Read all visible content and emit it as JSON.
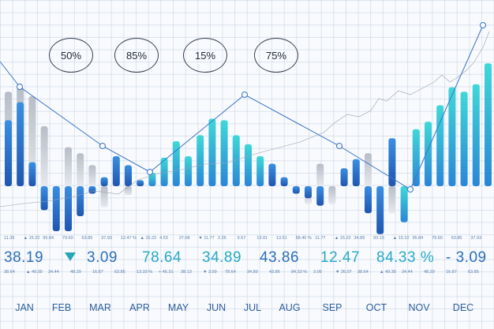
{
  "chart_data": {
    "type": "bar",
    "title": "",
    "months": [
      "JAN",
      "FEB",
      "MAR",
      "APR",
      "MAY",
      "JUN",
      "JUL",
      "AUG",
      "SEP",
      "OCT",
      "NOV",
      "DEC"
    ],
    "percent_badges": [
      "50%",
      "85%",
      "15%",
      "75%"
    ],
    "bars": [
      {
        "up": 44,
        "down": 0,
        "ghost_up": 63,
        "ghost_down": 0
      },
      {
        "up": 56,
        "down": 0,
        "ghost_up": 66,
        "ghost_down": 0
      },
      {
        "up": 16,
        "down": 0,
        "ghost_up": 60,
        "ghost_down": 0
      },
      {
        "up": 0,
        "down": 16,
        "ghost_up": 40,
        "ghost_down": 0
      },
      {
        "up": 0,
        "down": 30,
        "ghost_up": 0,
        "ghost_down": 0
      },
      {
        "up": 0,
        "down": 30,
        "ghost_up": 26,
        "ghost_down": 0
      },
      {
        "up": 0,
        "down": 20,
        "ghost_up": 22,
        "ghost_down": 0
      },
      {
        "up": 0,
        "down": 5,
        "ghost_up": 14,
        "ghost_down": 0
      },
      {
        "up": 6,
        "down": 0,
        "ghost_up": 0,
        "ghost_down": 14
      },
      {
        "up": 20,
        "down": 0,
        "ghost_up": 0,
        "ghost_down": 0
      },
      {
        "up": 14,
        "down": 0,
        "ghost_up": 0,
        "ghost_down": 6
      },
      {
        "up": 4,
        "down": 0,
        "ghost_up": 0,
        "ghost_down": 0
      },
      {
        "up": 9,
        "down": 0,
        "ghost_up": 0,
        "ghost_down": 0
      },
      {
        "up": 19,
        "down": 0,
        "ghost_up": 0,
        "ghost_down": 0
      },
      {
        "up": 30,
        "down": 0,
        "ghost_up": 0,
        "ghost_down": 0
      },
      {
        "up": 20,
        "down": 0,
        "ghost_up": 0,
        "ghost_down": 0
      },
      {
        "up": 34,
        "down": 0,
        "ghost_up": 0,
        "ghost_down": 0
      },
      {
        "up": 45,
        "down": 0,
        "ghost_up": 0,
        "ghost_down": 0
      },
      {
        "up": 44,
        "down": 0,
        "ghost_up": 0,
        "ghost_down": 0
      },
      {
        "up": 34,
        "down": 0,
        "ghost_up": 0,
        "ghost_down": 0
      },
      {
        "up": 28,
        "down": 0,
        "ghost_up": 0,
        "ghost_down": 0
      },
      {
        "up": 20,
        "down": 0,
        "ghost_up": 0,
        "ghost_down": 0
      },
      {
        "up": 15,
        "down": 0,
        "ghost_up": 0,
        "ghost_down": 0
      },
      {
        "up": 6,
        "down": 0,
        "ghost_up": 0,
        "ghost_down": 0
      },
      {
        "up": 0,
        "down": 5,
        "ghost_up": 0,
        "ghost_down": 0
      },
      {
        "up": 0,
        "down": 8,
        "ghost_up": 0,
        "ghost_down": 12
      },
      {
        "up": 0,
        "down": 13,
        "ghost_up": 15,
        "ghost_down": 0
      },
      {
        "up": 0,
        "down": 0,
        "ghost_up": 0,
        "ghost_down": 12
      },
      {
        "up": 12,
        "down": 0,
        "ghost_up": 0,
        "ghost_down": 0
      },
      {
        "up": 18,
        "down": 0,
        "ghost_up": 0,
        "ghost_down": 0
      },
      {
        "up": 0,
        "down": 18,
        "ghost_up": 22,
        "ghost_down": 0
      },
      {
        "up": 0,
        "down": 32,
        "ghost_up": 0,
        "ghost_down": 0
      },
      {
        "up": 32,
        "down": 0,
        "ghost_up": 0,
        "ghost_down": 18
      },
      {
        "up": 0,
        "down": 24,
        "ghost_up": 0,
        "ghost_down": 0
      },
      {
        "up": 38,
        "down": 0,
        "ghost_up": 0,
        "ghost_down": 0
      },
      {
        "up": 43,
        "down": 0,
        "ghost_up": 0,
        "ghost_down": 0
      },
      {
        "up": 54,
        "down": 0,
        "ghost_up": 0,
        "ghost_down": 0
      },
      {
        "up": 66,
        "down": 0,
        "ghost_up": 0,
        "ghost_down": 0
      },
      {
        "up": 63,
        "down": 0,
        "ghost_up": 0,
        "ghost_down": 0
      },
      {
        "up": 68,
        "down": 0,
        "ghost_up": 0,
        "ghost_down": 0
      },
      {
        "up": 82,
        "down": 0,
        "ghost_up": 0,
        "ghost_down": 0
      }
    ],
    "trend_points": [
      [
        0,
        78
      ],
      [
        25,
        110
      ],
      [
        130,
        185
      ],
      [
        190,
        218
      ],
      [
        310,
        120
      ],
      [
        430,
        185
      ],
      [
        520,
        240
      ],
      [
        612,
        32
      ]
    ],
    "value_row": [
      "38.19",
      "3.09",
      "78.64",
      "34.89",
      "43.86",
      "12.47",
      "84.33 %",
      "- 3.09"
    ],
    "small_row_top": [
      "11.39",
      "▲ 15.22",
      "95.84",
      "79.60",
      "63.85",
      "37.93",
      "12.47 %",
      "▲ 15.22",
      "4.53",
      "27.08",
      "▼ 11.77",
      "2.26",
      "9.57",
      "13.01",
      "13.51",
      "58.45 %",
      "11.77",
      "▲ 15.22",
      "34.89",
      "93.15",
      "▲ 15.22",
      "95.84",
      "79.60",
      "63.85",
      "37.93"
    ],
    "small_row_bottom": [
      "38.64",
      "▲ 49.39",
      "34.44",
      "48.29",
      "16.87",
      "63.85",
      "13.33 %",
      "+ 45.31",
      "38.13",
      "▼ 3.09",
      "78.64",
      "34.89",
      "43.86",
      "84.33 %",
      "3.09",
      "▼ 26.07",
      "38.64",
      "▲ 49.39",
      "34.44",
      "48.29",
      "16.87",
      "63.85"
    ]
  }
}
